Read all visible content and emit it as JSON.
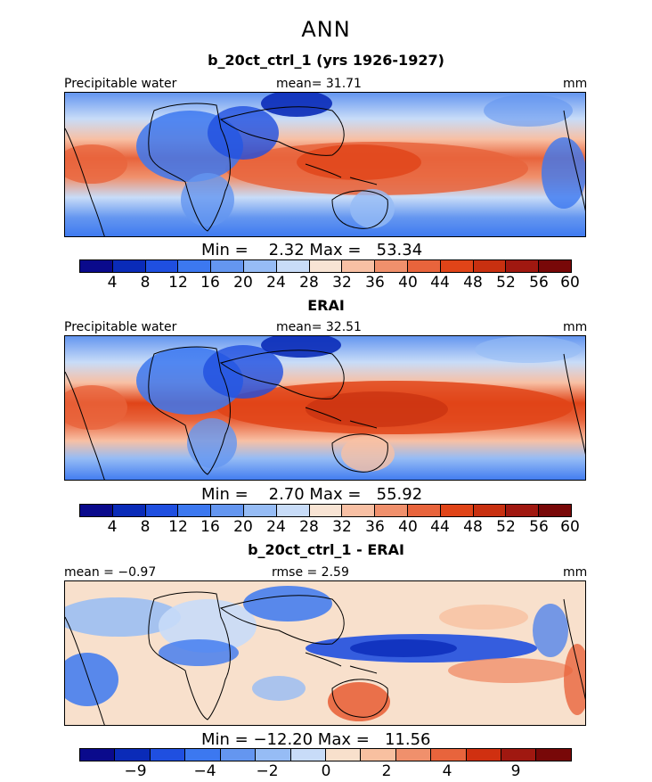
{
  "figure": {
    "title": "ANN",
    "panels": [
      {
        "title": "b_20ct_ctrl_1 (yrs 1926-1927)",
        "left_label": "Precipitable water",
        "center_label": "mean=  31.71",
        "right_label": "mm",
        "min_max": "Min =    2.32 Max =   53.34",
        "colorbar_ticks": [
          "4",
          "8",
          "12",
          "16",
          "20",
          "24",
          "28",
          "32",
          "36",
          "40",
          "44",
          "48",
          "52",
          "56",
          "60"
        ]
      },
      {
        "title": "ERAI",
        "left_label": "Precipitable water",
        "center_label": "mean=  32.51",
        "right_label": "mm",
        "min_max": "Min =    2.70 Max =   55.92",
        "colorbar_ticks": [
          "4",
          "8",
          "12",
          "16",
          "20",
          "24",
          "28",
          "32",
          "36",
          "40",
          "44",
          "48",
          "52",
          "56",
          "60"
        ]
      },
      {
        "title": "b_20ct_ctrl_1 - ERAI",
        "left_label": "mean =  −0.97",
        "center_label": "rmse =    2.59",
        "right_label": "mm",
        "min_max": "Min = −12.20 Max =   11.56",
        "colorbar_ticks": [
          "−9",
          "−4",
          "−2",
          "0",
          "2",
          "4",
          "9"
        ]
      }
    ]
  },
  "colors": {
    "field_scale": [
      "#0a0a8c",
      "#0a2bb8",
      "#1f4fe0",
      "#3c78f0",
      "#6496f0",
      "#96bcf5",
      "#c8dcf8",
      "#f8e4d4",
      "#f8c0a4",
      "#f0906c",
      "#e8643c",
      "#e04418",
      "#c83010",
      "#a01810",
      "#780808"
    ],
    "diff_scale": [
      "#0a0a8c",
      "#0a2bb8",
      "#1f4fe0",
      "#3c78f0",
      "#6496f0",
      "#96bcf5",
      "#c8dcf8",
      "#f8e0cc",
      "#f8c0a0",
      "#f0906c",
      "#e8643c",
      "#d03010",
      "#a01810",
      "#780808"
    ]
  }
}
